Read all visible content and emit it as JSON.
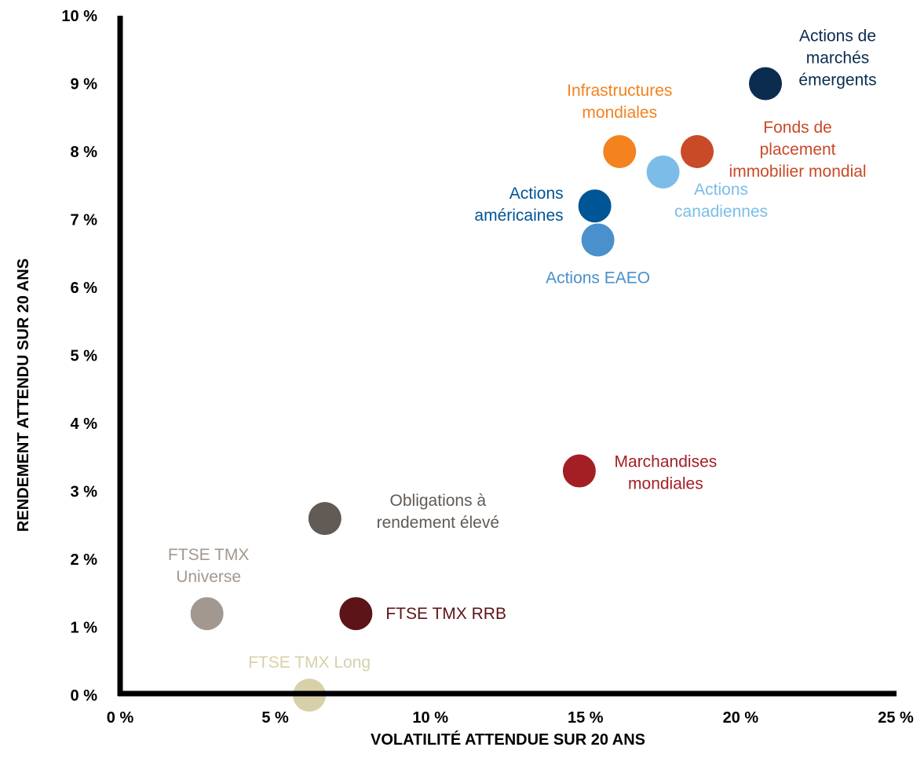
{
  "chart_data": {
    "type": "scatter",
    "title": "",
    "xlabel": "VOLATILITÉ ATTENDUE  SUR 20 ANS",
    "ylabel": "RENDEMENT  ATTENDU  SUR 20 ANS",
    "xlim": [
      0,
      25
    ],
    "ylim": [
      0,
      10
    ],
    "x_ticks": [
      {
        "value": 0,
        "label": "0 %"
      },
      {
        "value": 5,
        "label": "5 %"
      },
      {
        "value": 10,
        "label": "10 %"
      },
      {
        "value": 15,
        "label": "15 %"
      },
      {
        "value": 20,
        "label": "20 %"
      },
      {
        "value": 25,
        "label": "25 %"
      }
    ],
    "y_ticks": [
      {
        "value": 0,
        "label": "0 %"
      },
      {
        "value": 1,
        "label": "1 %"
      },
      {
        "value": 2,
        "label": "2 %"
      },
      {
        "value": 3,
        "label": "3 %"
      },
      {
        "value": 4,
        "label": "4 %"
      },
      {
        "value": 5,
        "label": "5 %"
      },
      {
        "value": 6,
        "label": "6 %"
      },
      {
        "value": 7,
        "label": "7 %"
      },
      {
        "value": 8,
        "label": "8 %"
      },
      {
        "value": 9,
        "label": "9 %"
      },
      {
        "value": 10,
        "label": "10 %"
      }
    ],
    "grid": false,
    "legend": "none",
    "points": [
      {
        "id": "actions-marches-emergents",
        "label": [
          "Actions de",
          "marchés",
          "émergents"
        ],
        "x": 20.8,
        "y": 9.0,
        "color": "#0b2c4f",
        "label_color": "#0b2c4f",
        "label_pos": "above-right"
      },
      {
        "id": "infrastructures-mondiales",
        "label": [
          "Infrastructures",
          "mondiales"
        ],
        "x": 16.1,
        "y": 8.0,
        "color": "#f3821f",
        "label_color": "#f3821f",
        "label_pos": "above"
      },
      {
        "id": "fonds-placement-immobilier",
        "label": [
          "Fonds de",
          "placement",
          "immobilier mondial"
        ],
        "x": 18.6,
        "y": 8.0,
        "color": "#c94a27",
        "label_color": "#c94a27",
        "label_pos": "below-right"
      },
      {
        "id": "actions-canadiennes",
        "label": [
          "Actions",
          "canadiennes"
        ],
        "x": 17.5,
        "y": 7.7,
        "color": "#7bbde8",
        "label_color": "#7bbde8",
        "label_pos": "below-right"
      },
      {
        "id": "actions-americaines",
        "label": [
          "Actions",
          "américaines"
        ],
        "x": 15.3,
        "y": 7.2,
        "color": "#005596",
        "label_color": "#005596",
        "label_pos": "left"
      },
      {
        "id": "actions-eaeo",
        "label": [
          "Actions EAEO"
        ],
        "x": 15.4,
        "y": 6.7,
        "color": "#4a90cc",
        "label_color": "#4a90cc",
        "label_pos": "below"
      },
      {
        "id": "marchandises-mondiales",
        "label": [
          "Marchandises",
          "mondiales"
        ],
        "x": 14.8,
        "y": 3.3,
        "color": "#a31f24",
        "label_color": "#a31f24",
        "label_pos": "right"
      },
      {
        "id": "obligations-rendement-eleve",
        "label": [
          "Obligations à",
          "rendement élevé"
        ],
        "x": 6.6,
        "y": 2.6,
        "color": "#615a55",
        "label_color": "#615a55",
        "label_pos": "right"
      },
      {
        "id": "ftse-tmx-universe",
        "label": [
          "FTSE TMX",
          "Universe"
        ],
        "x": 2.8,
        "y": 1.2,
        "color": "#a29890",
        "label_color": "#a29890",
        "label_pos": "above"
      },
      {
        "id": "ftse-tmx-rrb",
        "label": [
          "FTSE TMX RRB"
        ],
        "x": 7.6,
        "y": 1.2,
        "color": "#5c1418",
        "label_color": "#5c1418",
        "label_pos": "right"
      },
      {
        "id": "ftse-tmx-long",
        "label": [
          "FTSE TMX Long"
        ],
        "x": 6.1,
        "y": 0.0,
        "color": "#d8d0a8",
        "label_color": "#d8d0a8",
        "label_pos": "above"
      }
    ]
  }
}
